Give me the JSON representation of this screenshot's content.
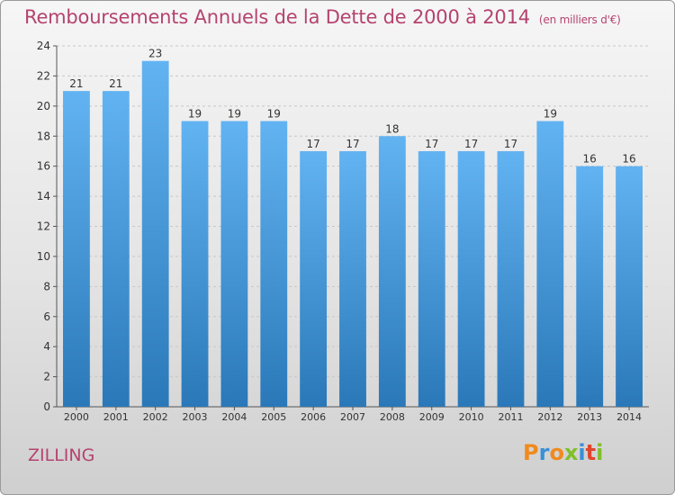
{
  "header": {
    "title": "Remboursements Annuels de la Dette de 2000 à 2014",
    "unit": "(en milliers d'€)"
  },
  "footer": {
    "city": "ZILLING",
    "logo_text": "Proxiti"
  },
  "colors": {
    "title": "#b5436f",
    "bar_top": "#62b3f2",
    "bar_bottom": "#2a78b8",
    "logo": [
      "#f08a1e",
      "#3a8fd9",
      "#f08a1e",
      "#7fbf2a",
      "#3a8fd9",
      "#e0452e",
      "#7fbf2a"
    ]
  },
  "chart_data": {
    "type": "bar",
    "title": "Remboursements Annuels de la Dette de 2000 à 2014",
    "xlabel": "",
    "ylabel": "",
    "categories": [
      "2000",
      "2001",
      "2002",
      "2003",
      "2004",
      "2005",
      "2006",
      "2007",
      "2008",
      "2009",
      "2010",
      "2011",
      "2012",
      "2013",
      "2014"
    ],
    "values": [
      21,
      21,
      23,
      19,
      19,
      19,
      17,
      17,
      18,
      17,
      17,
      17,
      19,
      16,
      16
    ],
    "ylim": [
      0,
      24
    ],
    "yticks": [
      0,
      2,
      4,
      6,
      8,
      10,
      12,
      14,
      16,
      18,
      20,
      22,
      24
    ],
    "grid": "y-dashed",
    "legend": "none"
  }
}
